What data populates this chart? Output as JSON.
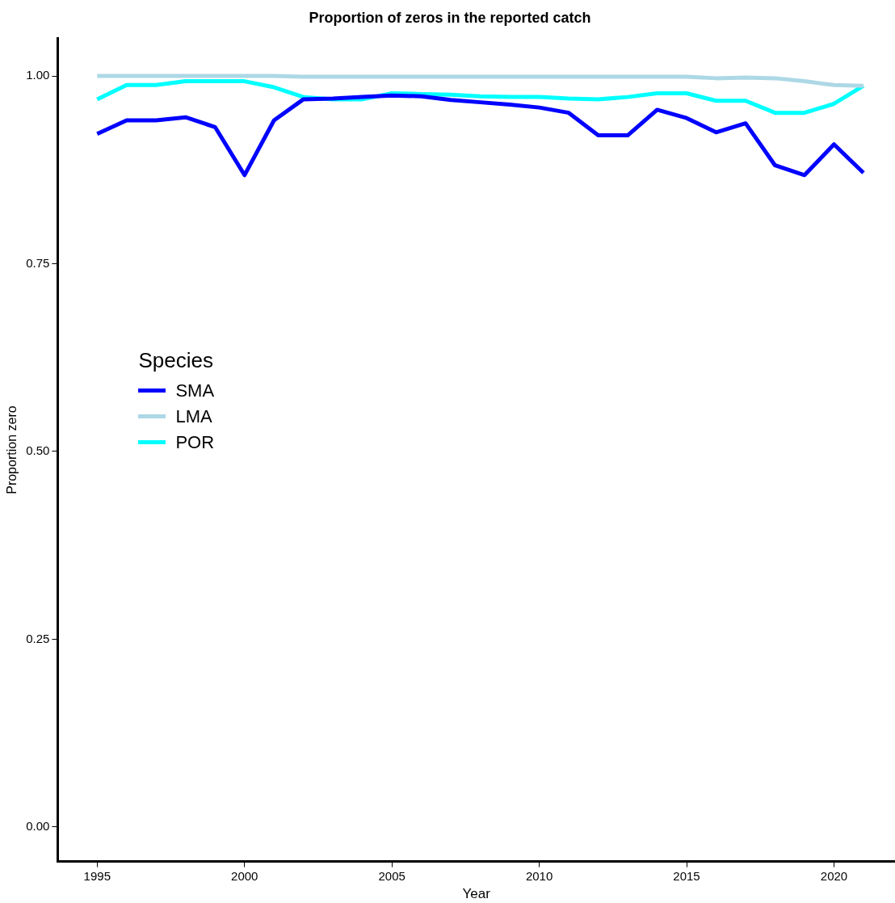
{
  "chart_data": {
    "type": "line",
    "title": "Proportion of zeros in the reported catch",
    "xlabel": "Year",
    "ylabel": "Proportion zero",
    "legend_title": "Species",
    "legend": "left",
    "x": [
      1995,
      1996,
      1997,
      1998,
      1999,
      2000,
      2001,
      2002,
      2003,
      2004,
      2005,
      2006,
      2007,
      2008,
      2009,
      2010,
      2011,
      2012,
      2013,
      2014,
      2015,
      2016,
      2017,
      2018,
      2019,
      2020,
      2021
    ],
    "series": [
      {
        "name": "SMA",
        "color": "#0000ff",
        "values": [
          0.923,
          0.941,
          0.941,
          0.945,
          0.932,
          0.868,
          0.941,
          0.969,
          0.97,
          0.972,
          0.974,
          0.973,
          0.968,
          0.965,
          0.962,
          0.958,
          0.951,
          0.921,
          0.921,
          0.955,
          0.944,
          0.925,
          0.937,
          0.881,
          0.868,
          0.909,
          0.871
        ]
      },
      {
        "name": "LMA",
        "color": "#add8e6",
        "values": [
          1.0,
          1.0,
          1.0,
          1.0,
          1.0,
          1.0,
          1.0,
          0.999,
          0.999,
          0.999,
          0.999,
          0.999,
          0.999,
          0.999,
          0.999,
          0.999,
          0.999,
          0.999,
          0.999,
          0.999,
          0.999,
          0.997,
          0.998,
          0.997,
          0.993,
          0.988,
          0.987
        ]
      },
      {
        "name": "POR",
        "color": "#00ffff",
        "values": [
          0.969,
          0.988,
          0.988,
          0.993,
          0.993,
          0.993,
          0.985,
          0.972,
          0.969,
          0.969,
          0.977,
          0.976,
          0.975,
          0.973,
          0.972,
          0.972,
          0.97,
          0.969,
          0.972,
          0.977,
          0.977,
          0.967,
          0.967,
          0.951,
          0.951,
          0.963,
          0.987
        ]
      }
    ],
    "xlim": [
      1993.66,
      2022.07
    ],
    "xticks": [
      1995,
      2000,
      2005,
      2010,
      2015,
      2020
    ],
    "ylim": [
      -0.046,
      1.05
    ],
    "yticks": [
      {
        "value": 0,
        "label": "0.00"
      },
      {
        "value": 0.25,
        "label": "0.25"
      },
      {
        "value": 0.5,
        "label": "0.50"
      },
      {
        "value": 0.75,
        "label": "0.75"
      },
      {
        "value": 1,
        "label": "1.00"
      }
    ],
    "grid": false,
    "line_style": "solid",
    "marker": "none"
  }
}
